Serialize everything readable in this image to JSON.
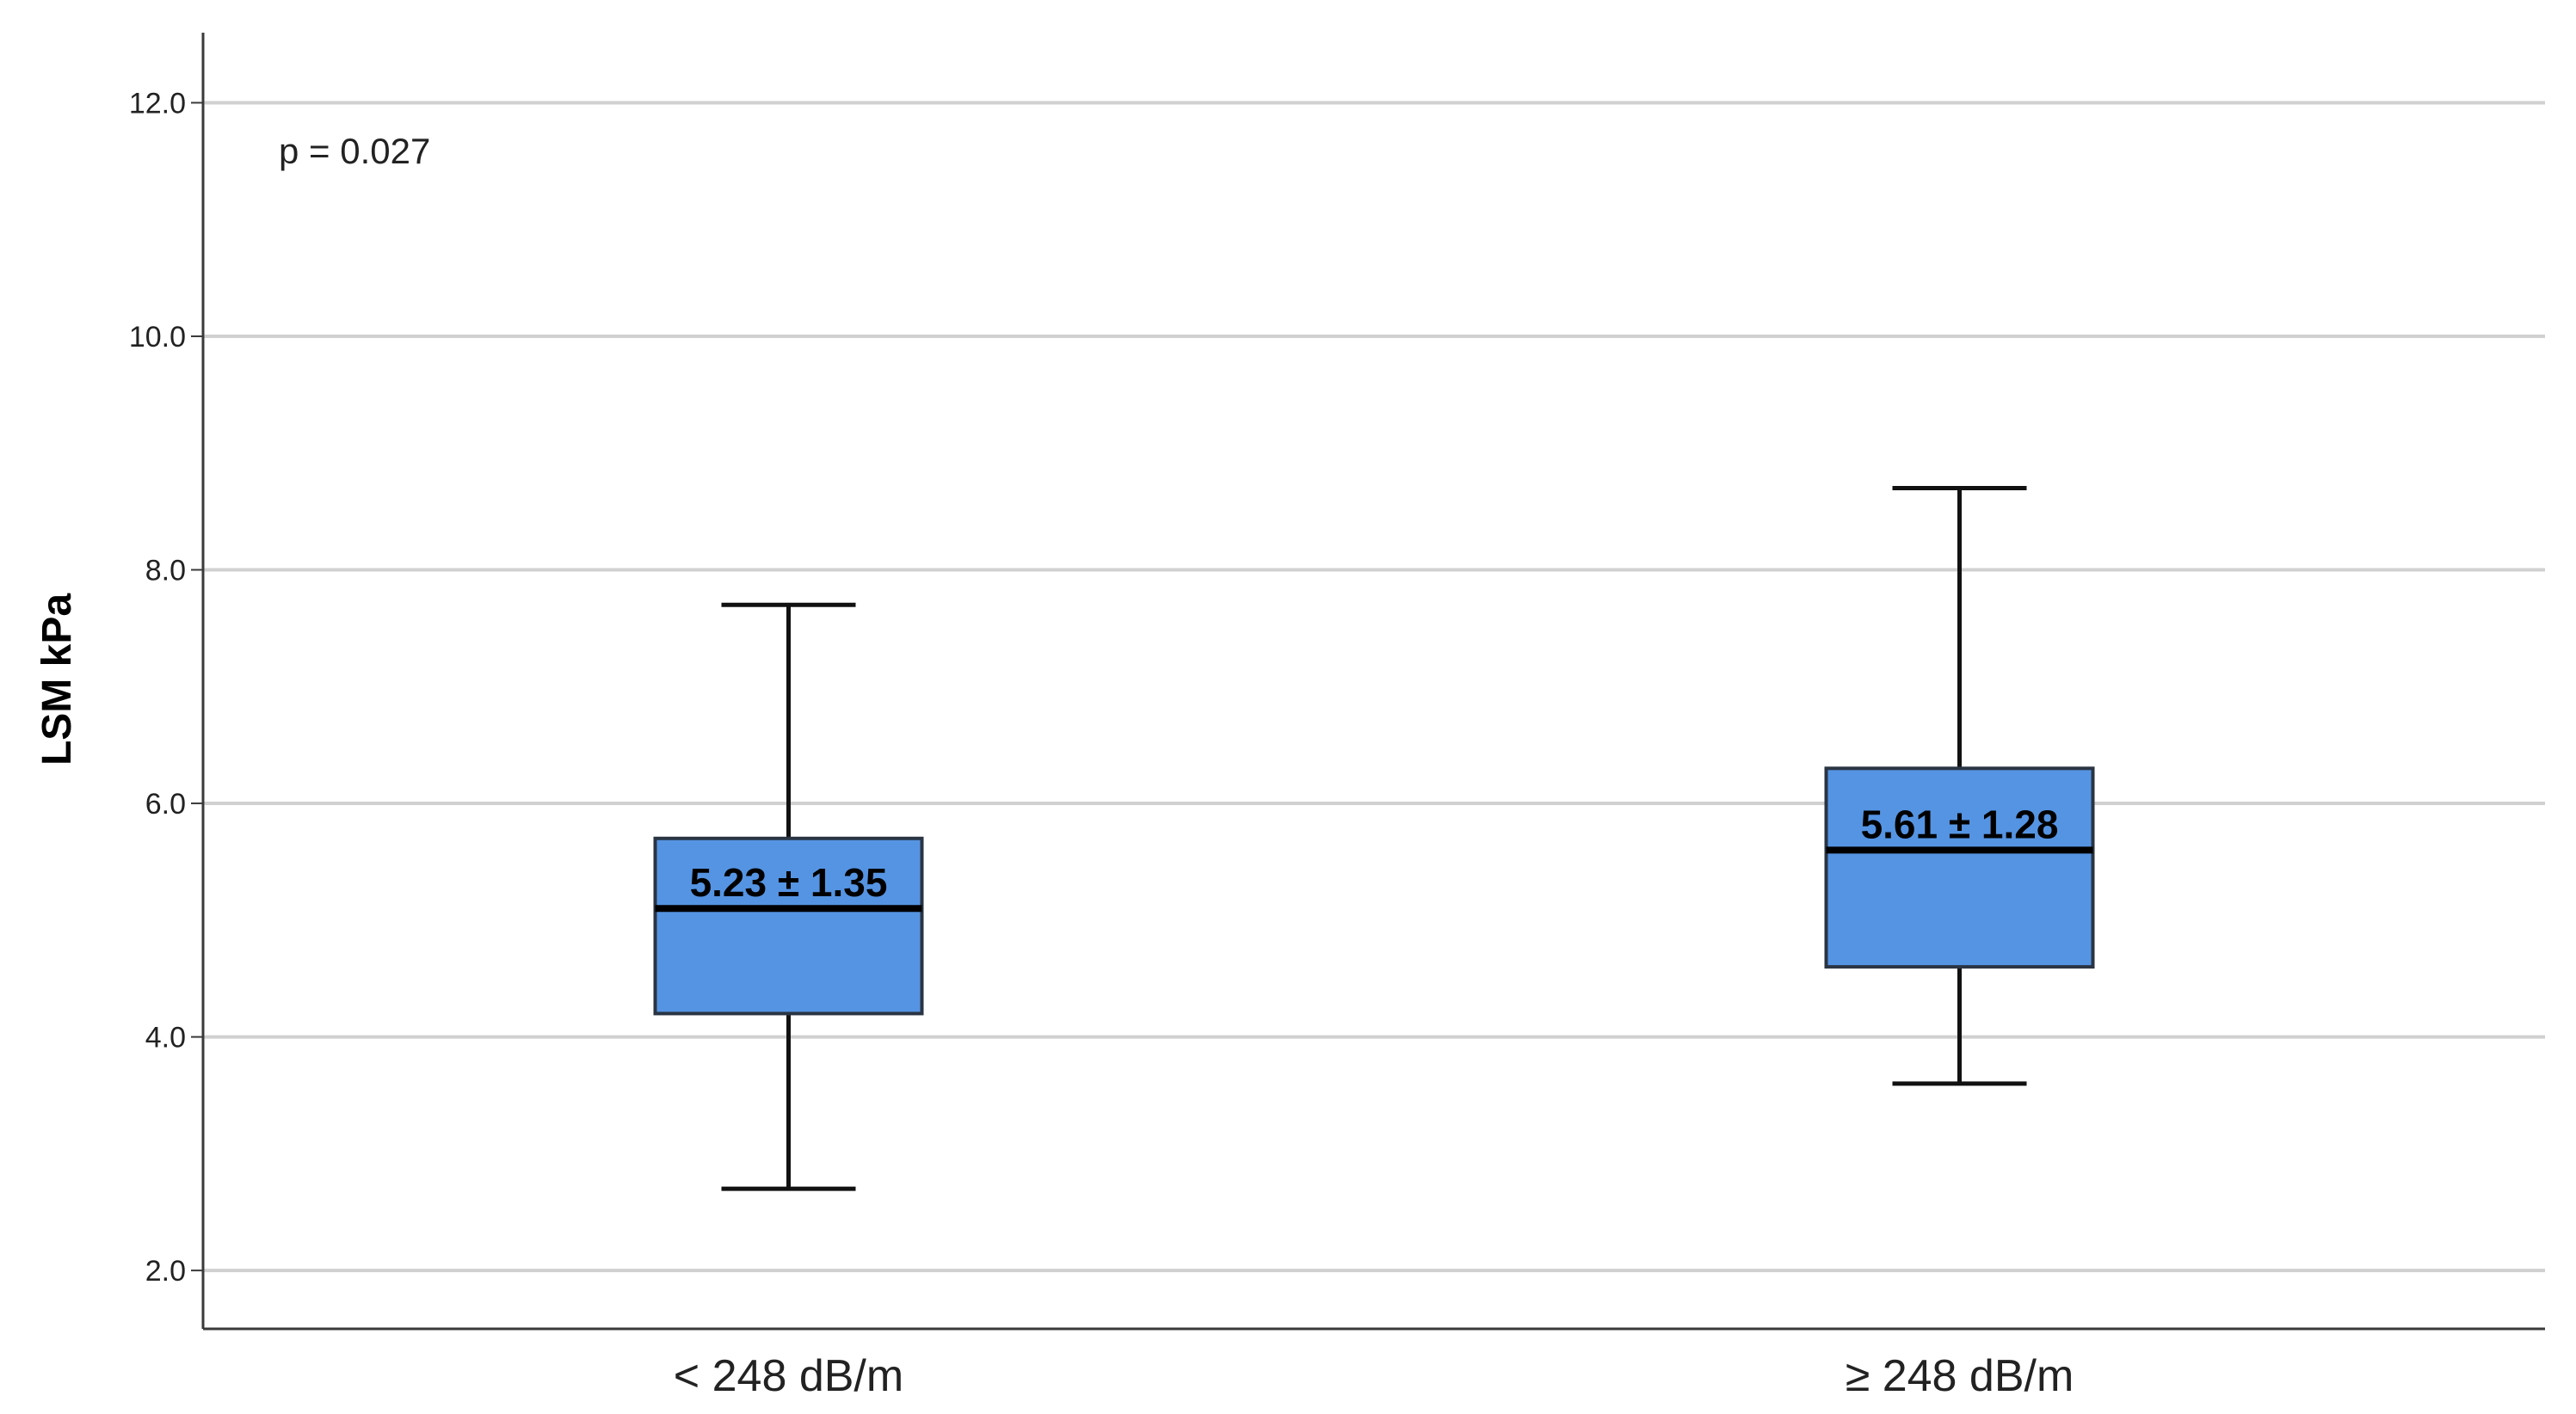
{
  "chart_data": {
    "type": "box",
    "title": "",
    "xlabel": "",
    "ylabel": "LSM kPa",
    "ylim": [
      1.5,
      12.6
    ],
    "yticks": [
      2.0,
      4.0,
      6.0,
      8.0,
      10.0,
      12.0
    ],
    "ytick_labels": [
      "2.0",
      "4.0",
      "6.0",
      "8.0",
      "10.0",
      "12.0"
    ],
    "grid": true,
    "annotation": "p = 0.027",
    "categories": [
      "< 248 dB/m",
      "≥ 248 dB/m"
    ],
    "boxes": [
      {
        "whisker_low": 2.7,
        "q1": 4.2,
        "median": 5.1,
        "q3": 5.7,
        "whisker_high": 7.7,
        "label": "5.23 ± 1.35"
      },
      {
        "whisker_low": 3.6,
        "q1": 4.6,
        "median": 5.6,
        "q3": 6.3,
        "whisker_high": 8.7,
        "label": "5.61 ± 1.28"
      }
    ],
    "colors": {
      "box_fill": "#5594e3",
      "box_stroke": "#2a3442",
      "grid": "#d0d0d0",
      "axis": "#3a3a3a"
    }
  }
}
